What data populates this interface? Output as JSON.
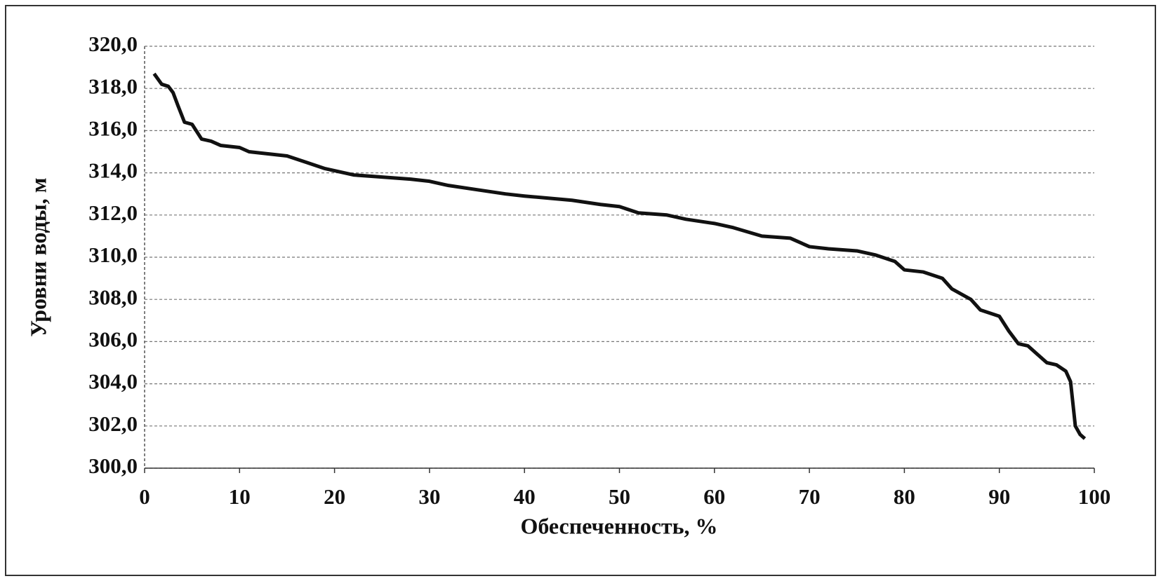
{
  "chart_data": {
    "type": "line",
    "xlabel": "Обеспеченность, %",
    "ylabel": "Уровни воды, м",
    "x": [
      1,
      1.8,
      2.5,
      3,
      3.5,
      4.2,
      5,
      6,
      7,
      8,
      10,
      11,
      13,
      15,
      17,
      19,
      20,
      22,
      25,
      28,
      30,
      32,
      35,
      38,
      40,
      45,
      48,
      50,
      52,
      55,
      57,
      60,
      62,
      65,
      68,
      70,
      72,
      75,
      77,
      79,
      80,
      82,
      84,
      85,
      87,
      88,
      90,
      91,
      92,
      93,
      94,
      95,
      96,
      97,
      97.5,
      98,
      98.5,
      99
    ],
    "series": [
      {
        "name": "Уровни воды",
        "color": "#111111",
        "values": [
          318.7,
          318.2,
          318.1,
          317.8,
          317.2,
          316.4,
          316.3,
          315.6,
          315.5,
          315.3,
          315.2,
          315.0,
          314.9,
          314.8,
          314.5,
          314.2,
          314.1,
          313.9,
          313.8,
          313.7,
          313.6,
          313.4,
          313.2,
          313.0,
          312.9,
          312.7,
          312.5,
          312.4,
          312.1,
          312.0,
          311.8,
          311.6,
          311.4,
          311.0,
          310.9,
          310.5,
          310.4,
          310.3,
          310.1,
          309.8,
          309.4,
          309.3,
          309.0,
          308.5,
          308.0,
          307.5,
          307.2,
          306.5,
          305.9,
          305.8,
          305.4,
          305.0,
          304.9,
          304.6,
          304.1,
          302.0,
          301.6,
          301.4
        ]
      }
    ],
    "xlim": [
      0,
      100
    ],
    "xticks": [
      0,
      10,
      20,
      30,
      40,
      50,
      60,
      70,
      80,
      90,
      100
    ],
    "ylim": [
      300,
      320
    ],
    "yticks": [
      {
        "value": 300,
        "label": "300,0"
      },
      {
        "value": 302,
        "label": "302,0"
      },
      {
        "value": 304,
        "label": "304,0"
      },
      {
        "value": 306,
        "label": "306,0"
      },
      {
        "value": 308,
        "label": "308,0"
      },
      {
        "value": 310,
        "label": "310,0"
      },
      {
        "value": 312,
        "label": "312,0"
      },
      {
        "value": 314,
        "label": "314,0"
      },
      {
        "value": 316,
        "label": "316,0"
      },
      {
        "value": 318,
        "label": "318,0"
      },
      {
        "value": 320,
        "label": "320,0"
      }
    ],
    "grid": true
  }
}
